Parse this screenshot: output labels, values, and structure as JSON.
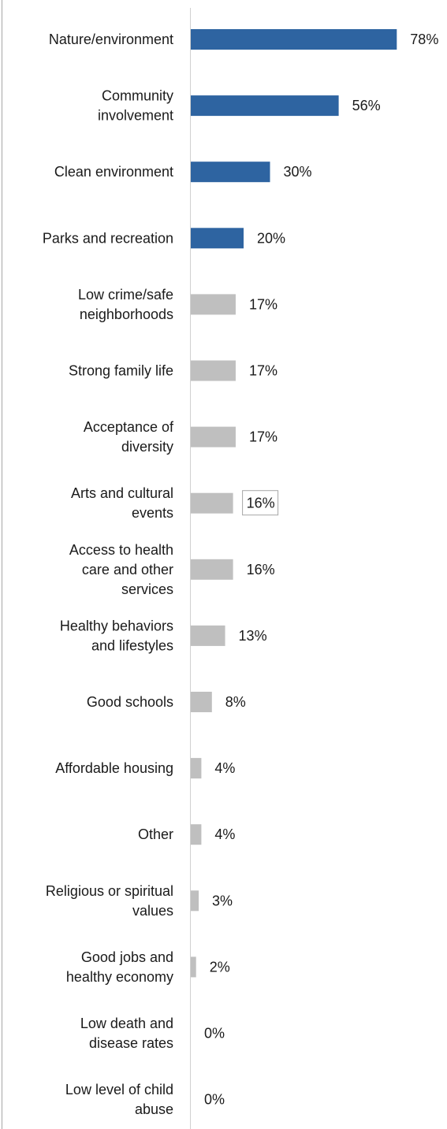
{
  "chart_data": {
    "type": "bar",
    "orientation": "horizontal",
    "title": "",
    "xlabel": "",
    "ylabel": "",
    "xlim": [
      0,
      100
    ],
    "grid": false,
    "categories": [
      "Nature/environment",
      "Community involvement",
      "Clean environment",
      "Parks and recreation",
      "Low crime/safe neighborhoods",
      "Strong family life",
      "Acceptance of diversity",
      "Arts and cultural events",
      "Access to health care and other services",
      "Healthy behaviors and lifestyles",
      "Good schools",
      "Affordable housing",
      "Other",
      "Religious or spiritual values",
      "Good jobs and healthy economy",
      "Low death and disease rates",
      "Low level of child abuse"
    ],
    "category_label_lines": [
      [
        "Nature/environment"
      ],
      [
        "Community",
        "involvement"
      ],
      [
        "Clean environment"
      ],
      [
        "Parks and recreation"
      ],
      [
        "Low crime/safe",
        "neighborhoods"
      ],
      [
        "Strong family life"
      ],
      [
        "Acceptance of",
        "diversity"
      ],
      [
        "Arts and cultural",
        "events"
      ],
      [
        "Access to health",
        "care and other",
        "services"
      ],
      [
        "Healthy behaviors",
        "and lifestyles"
      ],
      [
        "Good schools"
      ],
      [
        "Affordable housing"
      ],
      [
        "Other"
      ],
      [
        "Religious or spiritual",
        "values"
      ],
      [
        "Good jobs and",
        "healthy economy"
      ],
      [
        "Low death and",
        "disease rates"
      ],
      [
        "Low level of child",
        "abuse"
      ]
    ],
    "values": [
      78,
      56,
      30,
      20,
      17,
      17,
      17,
      16,
      16,
      13,
      8,
      4,
      4,
      3,
      2,
      0,
      0
    ],
    "value_labels": [
      "78%",
      "56%",
      "30%",
      "20%",
      "17%",
      "17%",
      "17%",
      "16%",
      "16%",
      "13%",
      "8%",
      "4%",
      "4%",
      "3%",
      "2%",
      "0%",
      "0%"
    ],
    "highlighted_count": 4,
    "highlight_color": "#2e64a1",
    "base_color": "#bfbfbf",
    "boxed_label_index": 7
  }
}
